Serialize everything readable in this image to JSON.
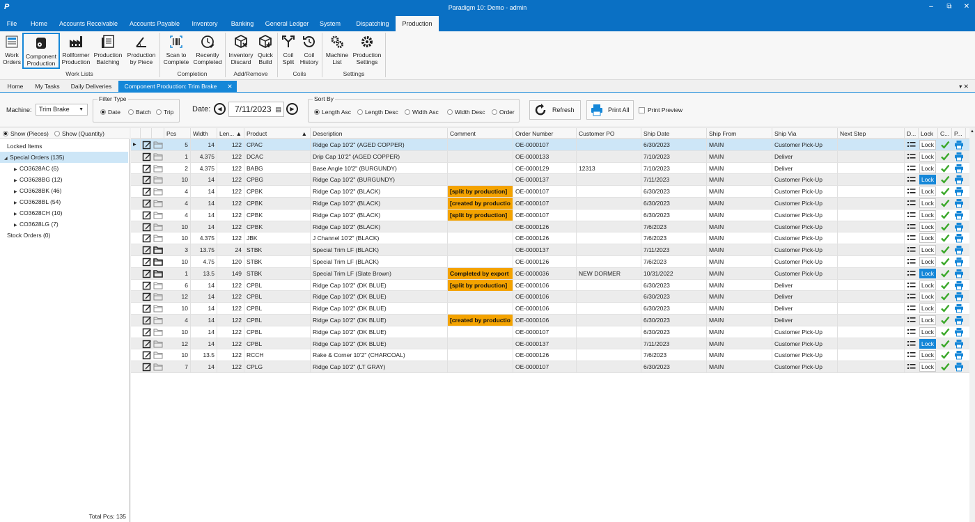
{
  "titlebar": {
    "logo": "P",
    "title": "Paradigm 10: Demo - admin",
    "minimize": "–",
    "restore": "⧉",
    "close": "✕"
  },
  "menu": [
    "File",
    "Home",
    "Accounts Receivable",
    "Accounts Payable",
    "Inventory",
    "Banking",
    "General Ledger",
    "System",
    "Dispatching",
    "Production"
  ],
  "ribbon": {
    "buttons": [
      {
        "l1": "Work",
        "l2": "Orders",
        "icon": "work-orders-icon"
      },
      {
        "l1": "Component",
        "l2": "Production",
        "icon": "component-production-icon"
      },
      {
        "l1": "Rollformer",
        "l2": "Production",
        "icon": "factory-icon"
      },
      {
        "l1": "Production",
        "l2": "Batching",
        "icon": "batching-icon"
      },
      {
        "l1": "Production",
        "l2": "by Piece",
        "icon": "angle-icon"
      },
      {
        "l1": "Scan to",
        "l2": "Complete",
        "icon": "barcode-icon"
      },
      {
        "l1": "Recently",
        "l2": "Completed",
        "icon": "clock-check-icon"
      },
      {
        "l1": "Inventory",
        "l2": "Discard",
        "icon": "box-remove-icon"
      },
      {
        "l1": "Quick",
        "l2": "Build",
        "icon": "box-add-icon"
      },
      {
        "l1": "Coil",
        "l2": "Split",
        "icon": "split-icon"
      },
      {
        "l1": "Coil",
        "l2": "History",
        "icon": "history-icon"
      },
      {
        "l1": "Machine",
        "l2": "List",
        "icon": "gears-icon"
      },
      {
        "l1": "Production",
        "l2": "Settings",
        "icon": "gear-icon"
      }
    ],
    "groups": [
      "Work Lists",
      "Completion",
      "Add/Remove",
      "Coils",
      "Settings"
    ]
  },
  "doctabs": [
    "Home",
    "My Tasks",
    "Daily Deliveries",
    "Component Production: Trim Brake"
  ],
  "doctab_close": "✕",
  "doctabs_right": "▾ ✕",
  "filters": {
    "machine_label": "Machine:",
    "machine_value": "Trim Brake",
    "filter_type_label": "Filter Type",
    "filter_options": [
      "Date",
      "Batch",
      "Trip"
    ],
    "date_label": "Date:",
    "date_value": "7/11/2023",
    "sort_by_label": "Sort By",
    "sort_options": [
      "Length Asc",
      "Length Desc",
      "Width Asc",
      "Width Desc",
      "Order"
    ],
    "refresh_label": "Refresh",
    "print_all_label": "Print All",
    "print_preview_label": "Print Preview"
  },
  "left": {
    "show_pieces": "Show (Pieces)",
    "show_quantity": "Show (Quantity)",
    "tree": [
      {
        "label": "Locked Items",
        "level": 0,
        "arrow": ""
      },
      {
        "label": "Special Orders (135)",
        "level": 0,
        "arrow": "◢",
        "selected": true
      },
      {
        "label": "CO3628AC (6)",
        "level": 1,
        "arrow": "▶"
      },
      {
        "label": "CO3628BG (12)",
        "level": 1,
        "arrow": "▶"
      },
      {
        "label": "CO3628BK (46)",
        "level": 1,
        "arrow": "▶"
      },
      {
        "label": "CO3628BL (54)",
        "level": 1,
        "arrow": "▶"
      },
      {
        "label": "CO3628CH (10)",
        "level": 1,
        "arrow": "▶"
      },
      {
        "label": "CO3628LG (7)",
        "level": 1,
        "arrow": "▶"
      },
      {
        "label": "Stock Orders (0)",
        "level": 0,
        "arrow": ""
      }
    ],
    "total_pcs": "Total Pcs:  135"
  },
  "grid": {
    "headers": [
      "Pcs",
      "Width",
      "Len... ▲",
      "Product",
      "▲",
      "Description",
      "Comment",
      "Order Number",
      "Customer PO",
      "Ship Date",
      "Ship From",
      "Ship Via",
      "Next Step",
      "D...",
      "Lock",
      "C...",
      "P..."
    ],
    "lock_label": "Lock",
    "rows": [
      {
        "pcs": "5",
        "width": "14",
        "len": "122",
        "product": "CPAC",
        "desc": "Ridge Cap 10'2\" (AGED COPPER)",
        "comment": "",
        "order": "OE-0000107",
        "po": "",
        "date": "6/30/2023",
        "from": "MAIN",
        "via": "Customer Pick-Up",
        "lock_on": false
      },
      {
        "pcs": "1",
        "width": "4.375",
        "len": "122",
        "product": "DCAC",
        "desc": "Drip Cap 10'2\" (AGED COPPER)",
        "comment": "",
        "order": "OE-0000133",
        "po": "",
        "date": "7/10/2023",
        "from": "MAIN",
        "via": "Deliver",
        "lock_on": false
      },
      {
        "pcs": "2",
        "width": "4.375",
        "len": "122",
        "product": "BABG",
        "desc": "Base Angle 10'2\" (BURGUNDY)",
        "comment": "",
        "order": "OE-0000129",
        "po": "12313",
        "date": "7/10/2023",
        "from": "MAIN",
        "via": "Deliver",
        "lock_on": false
      },
      {
        "pcs": "10",
        "width": "14",
        "len": "122",
        "product": "CPBG",
        "desc": "Ridge Cap 10'2\" (BURGUNDY)",
        "comment": "",
        "order": "OE-0000137",
        "po": "",
        "date": "7/11/2023",
        "from": "MAIN",
        "via": "Customer Pick-Up",
        "lock_on": true
      },
      {
        "pcs": "4",
        "width": "14",
        "len": "122",
        "product": "CPBK",
        "desc": "Ridge Cap 10'2\" (BLACK)",
        "comment": "[split by production]",
        "order": "OE-0000107",
        "po": "",
        "date": "6/30/2023",
        "from": "MAIN",
        "via": "Customer Pick-Up",
        "lock_on": false
      },
      {
        "pcs": "4",
        "width": "14",
        "len": "122",
        "product": "CPBK",
        "desc": "Ridge Cap 10'2\" (BLACK)",
        "comment": "[created by productio",
        "order": "OE-0000107",
        "po": "",
        "date": "6/30/2023",
        "from": "MAIN",
        "via": "Customer Pick-Up",
        "lock_on": false
      },
      {
        "pcs": "4",
        "width": "14",
        "len": "122",
        "product": "CPBK",
        "desc": "Ridge Cap 10'2\" (BLACK)",
        "comment": "[split by production]",
        "order": "OE-0000107",
        "po": "",
        "date": "6/30/2023",
        "from": "MAIN",
        "via": "Customer Pick-Up",
        "lock_on": false
      },
      {
        "pcs": "10",
        "width": "14",
        "len": "122",
        "product": "CPBK",
        "desc": "Ridge Cap 10'2\" (BLACK)",
        "comment": "",
        "order": "OE-0000126",
        "po": "",
        "date": "7/6/2023",
        "from": "MAIN",
        "via": "Customer Pick-Up",
        "lock_on": false
      },
      {
        "pcs": "10",
        "width": "4.375",
        "len": "122",
        "product": "JBK",
        "desc": "J Channel 10'2\" (BLACK)",
        "comment": "",
        "order": "OE-0000126",
        "po": "",
        "date": "7/6/2023",
        "from": "MAIN",
        "via": "Customer Pick-Up",
        "lock_on": false
      },
      {
        "pcs": "3",
        "width": "13.75",
        "len": "24",
        "product": "STBK",
        "desc": "Special Trim LF (BLACK)",
        "comment": "",
        "order": "OE-0000137",
        "po": "",
        "date": "7/11/2023",
        "from": "MAIN",
        "via": "Customer Pick-Up",
        "lock_on": false
      },
      {
        "pcs": "10",
        "width": "4.75",
        "len": "120",
        "product": "STBK",
        "desc": "Special Trim LF (BLACK)",
        "comment": "",
        "order": "OE-0000126",
        "po": "",
        "date": "7/6/2023",
        "from": "MAIN",
        "via": "Customer Pick-Up",
        "lock_on": false
      },
      {
        "pcs": "1",
        "width": "13.5",
        "len": "149",
        "product": "STBK",
        "desc": "Special Trim LF (Slate Brown)",
        "comment": "Completed by export",
        "order": "OE-0000036",
        "po": "NEW DORMER",
        "date": "10/31/2022",
        "from": "MAIN",
        "via": "Customer Pick-Up",
        "lock_on": true
      },
      {
        "pcs": "6",
        "width": "14",
        "len": "122",
        "product": "CPBL",
        "desc": "Ridge Cap 10'2\" (DK BLUE)",
        "comment": "[split by production]",
        "order": "OE-0000106",
        "po": "",
        "date": "6/30/2023",
        "from": "MAIN",
        "via": "Deliver",
        "lock_on": false
      },
      {
        "pcs": "12",
        "width": "14",
        "len": "122",
        "product": "CPBL",
        "desc": "Ridge Cap 10'2\" (DK BLUE)",
        "comment": "",
        "order": "OE-0000106",
        "po": "",
        "date": "6/30/2023",
        "from": "MAIN",
        "via": "Deliver",
        "lock_on": false
      },
      {
        "pcs": "10",
        "width": "14",
        "len": "122",
        "product": "CPBL",
        "desc": "Ridge Cap 10'2\" (DK BLUE)",
        "comment": "",
        "order": "OE-0000106",
        "po": "",
        "date": "6/30/2023",
        "from": "MAIN",
        "via": "Deliver",
        "lock_on": false
      },
      {
        "pcs": "4",
        "width": "14",
        "len": "122",
        "product": "CPBL",
        "desc": "Ridge Cap 10'2\" (DK BLUE)",
        "comment": "[created by productio",
        "order": "OE-0000106",
        "po": "",
        "date": "6/30/2023",
        "from": "MAIN",
        "via": "Deliver",
        "lock_on": false
      },
      {
        "pcs": "10",
        "width": "14",
        "len": "122",
        "product": "CPBL",
        "desc": "Ridge Cap 10'2\" (DK BLUE)",
        "comment": "",
        "order": "OE-0000107",
        "po": "",
        "date": "6/30/2023",
        "from": "MAIN",
        "via": "Customer Pick-Up",
        "lock_on": false
      },
      {
        "pcs": "12",
        "width": "14",
        "len": "122",
        "product": "CPBL",
        "desc": "Ridge Cap 10'2\" (DK BLUE)",
        "comment": "",
        "order": "OE-0000137",
        "po": "",
        "date": "7/11/2023",
        "from": "MAIN",
        "via": "Customer Pick-Up",
        "lock_on": true
      },
      {
        "pcs": "10",
        "width": "13.5",
        "len": "122",
        "product": "RCCH",
        "desc": "Rake & Corner 10'2\" (CHARCOAL)",
        "comment": "",
        "order": "OE-0000126",
        "po": "",
        "date": "7/6/2023",
        "from": "MAIN",
        "via": "Customer Pick-Up",
        "lock_on": false
      },
      {
        "pcs": "7",
        "width": "14",
        "len": "122",
        "product": "CPLG",
        "desc": "Ridge Cap 10'2\" (LT GRAY)",
        "comment": "",
        "order": "OE-0000107",
        "po": "",
        "date": "6/30/2023",
        "from": "MAIN",
        "via": "Customer Pick-Up",
        "lock_on": false
      }
    ]
  },
  "colors": {
    "brand": "#0a70c4",
    "accent": "#1587d8",
    "flag": "#f4a300",
    "check": "#3aa829"
  }
}
